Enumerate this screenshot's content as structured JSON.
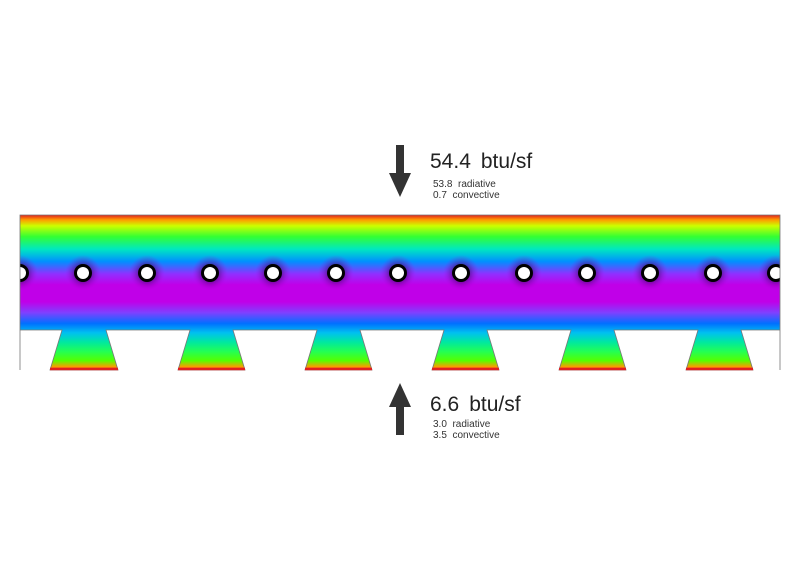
{
  "top_flux": {
    "value": "54.4",
    "unit": "btu/sf",
    "radiative_value": "53.8",
    "radiative_label": "radiative",
    "convective_value": "0.7",
    "convective_label": "convective",
    "direction": "down"
  },
  "bottom_flux": {
    "value": "6.6",
    "unit": "btu/sf",
    "radiative_value": "3.0",
    "radiative_label": "radiative",
    "convective_value": "3.5",
    "convective_label": "convective",
    "direction": "up"
  },
  "colors": {
    "hot": "#e02020",
    "warm": "#ff9900",
    "mid": "#66ff00",
    "cool": "#00e0e0",
    "cold": "#0060ff",
    "coldest": "#c000e8",
    "arrow": "#333333"
  },
  "icons": {
    "down_arrow": "arrow-down-icon",
    "up_arrow": "arrow-up-icon"
  }
}
